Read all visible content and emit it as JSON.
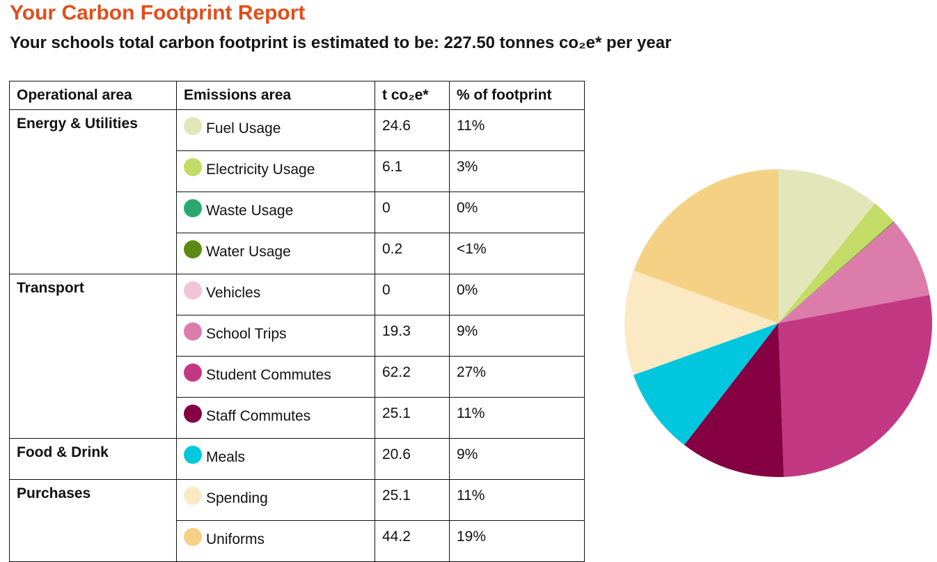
{
  "title": "Your Carbon Footprint Report",
  "subtitle": "Your schools total carbon footprint is estimated to be: 227.50 tonnes co₂e* per year",
  "table": {
    "headers": [
      "Operational area",
      "Emissions area",
      "t co₂e*",
      "% of footprint"
    ],
    "groups": [
      {
        "area": "Energy & Utilities",
        "rows": [
          {
            "name": "Fuel Usage",
            "t": "24.6",
            "pct": "11%",
            "color": "#e3e6b9"
          },
          {
            "name": "Electricity Usage",
            "t": "6.1",
            "pct": "3%",
            "color": "#c3dc67"
          },
          {
            "name": "Waste Usage",
            "t": "0",
            "pct": "0%",
            "color": "#2aa96f"
          },
          {
            "name": "Water Usage",
            "t": "0.2",
            "pct": "<1%",
            "color": "#5b8a12"
          }
        ]
      },
      {
        "area": "Transport",
        "rows": [
          {
            "name": "Vehicles",
            "t": "0",
            "pct": "0%",
            "color": "#f1c4d6"
          },
          {
            "name": "School Trips",
            "t": "19.3",
            "pct": "9%",
            "color": "#dc7cab"
          },
          {
            "name": "Student Commutes",
            "t": "62.2",
            "pct": "27%",
            "color": "#c33883"
          },
          {
            "name": "Staff Commutes",
            "t": "25.1",
            "pct": "11%",
            "color": "#840042"
          }
        ]
      },
      {
        "area": "Food & Drink",
        "rows": [
          {
            "name": "Meals",
            "t": "20.6",
            "pct": "9%",
            "color": "#00c7de"
          }
        ]
      },
      {
        "area": "Purchases",
        "rows": [
          {
            "name": "Spending",
            "t": "25.1",
            "pct": "11%",
            "color": "#fbe9c3"
          },
          {
            "name": "Uniforms",
            "t": "44.2",
            "pct": "19%",
            "color": "#f4d185"
          }
        ]
      }
    ]
  },
  "chart_data": {
    "type": "pie",
    "categories": [
      "Fuel Usage",
      "Electricity Usage",
      "Waste Usage",
      "Water Usage",
      "Vehicles",
      "School Trips",
      "Student Commutes",
      "Staff Commutes",
      "Meals",
      "Spending",
      "Uniforms"
    ],
    "values": [
      24.6,
      6.1,
      0,
      0.2,
      0,
      19.3,
      62.2,
      25.1,
      20.6,
      25.1,
      44.2
    ],
    "colors": [
      "#e3e6b9",
      "#c3dc67",
      "#2aa96f",
      "#5b8a12",
      "#f1c4d6",
      "#dc7cab",
      "#c33883",
      "#840042",
      "#00c7de",
      "#fbe9c3",
      "#f4d185"
    ],
    "direction": "clockwise",
    "start": "top"
  }
}
